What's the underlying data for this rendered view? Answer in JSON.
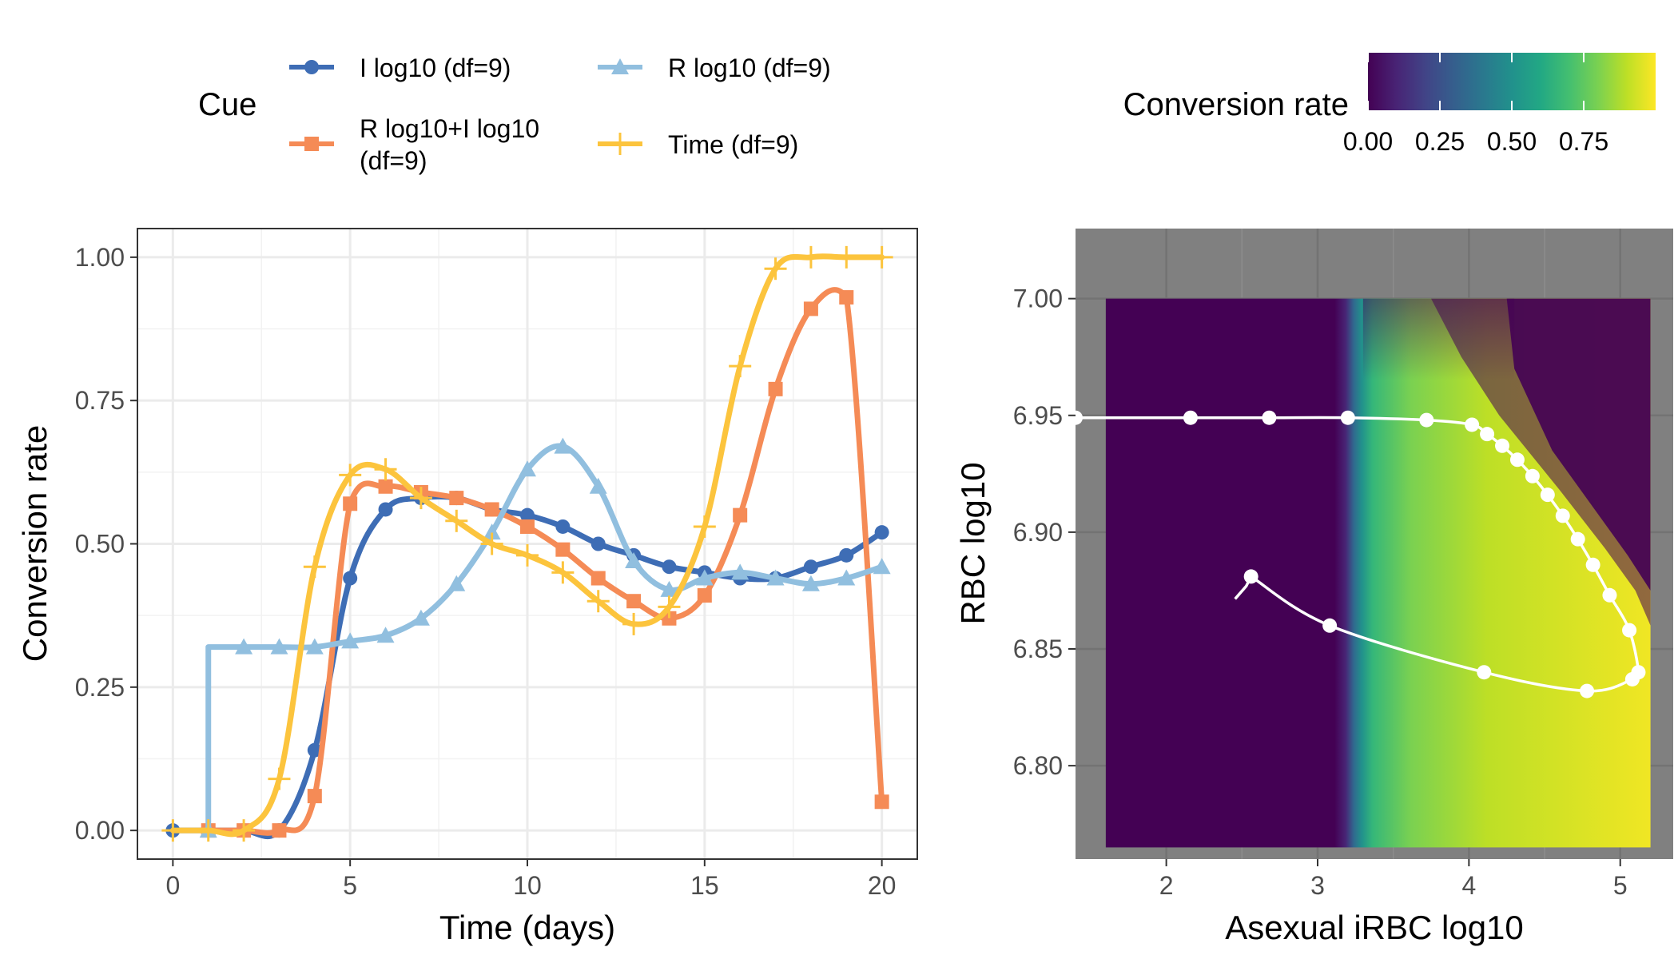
{
  "chart_data": [
    {
      "type": "line",
      "xlabel": "Time (days)",
      "ylabel": "Conversion rate",
      "xlim": [
        -1,
        21
      ],
      "ylim": [
        -0.05,
        1.05
      ],
      "x_ticks": [
        0,
        5,
        10,
        15,
        20
      ],
      "y_ticks": [
        0.0,
        0.25,
        0.5,
        0.75,
        1.0
      ],
      "x_tick_labels": [
        "0",
        "5",
        "10",
        "15",
        "20"
      ],
      "y_tick_labels": [
        "0.00",
        "0.25",
        "0.50",
        "0.75",
        "1.00"
      ],
      "grid": true,
      "legend_title": "Cue",
      "legend_position": "top",
      "series": [
        {
          "name": "I log10 (df=9)",
          "color": "#3e6db5",
          "marker": "circle",
          "x": [
            0,
            1,
            2,
            3,
            4,
            5,
            6,
            7,
            8,
            9,
            10,
            11,
            12,
            13,
            14,
            15,
            16,
            17,
            18,
            19,
            20
          ],
          "y": [
            0.0,
            0.0,
            0.0,
            0.0,
            0.14,
            0.44,
            0.56,
            0.58,
            0.58,
            0.56,
            0.55,
            0.53,
            0.5,
            0.48,
            0.46,
            0.45,
            0.44,
            0.44,
            0.46,
            0.48,
            0.52
          ]
        },
        {
          "name": "R log10+I log10\n(df=9)",
          "color": "#f58b56",
          "marker": "square",
          "x": [
            1,
            2,
            3,
            4,
            5,
            6,
            7,
            8,
            9,
            10,
            11,
            12,
            13,
            14,
            15,
            16,
            17,
            18,
            19,
            20
          ],
          "y": [
            0.0,
            0.0,
            0.0,
            0.06,
            0.57,
            0.6,
            0.59,
            0.58,
            0.56,
            0.53,
            0.49,
            0.44,
            0.4,
            0.37,
            0.41,
            0.55,
            0.77,
            0.91,
            0.93,
            0.05
          ]
        },
        {
          "name": "R log10 (df=9)",
          "color": "#91bfdf",
          "marker": "triangle",
          "x": [
            1,
            2,
            3,
            4,
            5,
            6,
            7,
            8,
            9,
            10,
            11,
            12,
            13,
            14,
            15,
            16,
            17,
            18,
            19,
            20
          ],
          "y": [
            0.0,
            0.32,
            0.32,
            0.32,
            0.33,
            0.34,
            0.37,
            0.43,
            0.52,
            0.63,
            0.67,
            0.6,
            0.47,
            0.42,
            0.44,
            0.45,
            0.44,
            0.43,
            0.44,
            0.46
          ]
        },
        {
          "name": "Time (df=9)",
          "color": "#fcc43d",
          "marker": "plus",
          "x": [
            0,
            1,
            2,
            3,
            4,
            5,
            6,
            7,
            8,
            9,
            10,
            11,
            12,
            13,
            14,
            15,
            16,
            17,
            18,
            19,
            20
          ],
          "y": [
            0.0,
            0.0,
            0.0,
            0.09,
            0.46,
            0.62,
            0.63,
            0.58,
            0.54,
            0.5,
            0.48,
            0.45,
            0.4,
            0.36,
            0.39,
            0.53,
            0.81,
            0.98,
            1.0,
            1.0,
            1.0
          ]
        }
      ]
    },
    {
      "type": "heatmap",
      "xlabel": "Asexual iRBC log10",
      "ylabel": "RBC log10",
      "x_ticks": [
        2,
        3,
        4,
        5
      ],
      "y_ticks": [
        6.8,
        6.85,
        6.9,
        6.95,
        7.0
      ],
      "x_tick_labels": [
        "2",
        "3",
        "4",
        "5"
      ],
      "y_tick_labels": [
        "6.80",
        "6.85",
        "6.90",
        "6.95",
        "7.00"
      ],
      "xlim": [
        1.4,
        5.35
      ],
      "ylim": [
        6.76,
        7.03
      ],
      "heatmap_extent": {
        "x": [
          1.6,
          5.2
        ],
        "y": [
          6.765,
          7.0
        ]
      },
      "colorbar_title": "Conversion rate",
      "colorbar_ticks": [
        0.0,
        0.25,
        0.5,
        0.75
      ],
      "colorbar_tick_labels": [
        "0.00",
        "0.25",
        "0.50",
        "0.75"
      ],
      "colorbar_range": [
        0,
        1
      ],
      "colormap": "viridis",
      "panel_background": "#808080",
      "trajectory": {
        "color": "#ffffff",
        "points": [
          [
            1.4,
            6.949
          ],
          [
            2.16,
            6.949
          ],
          [
            2.68,
            6.949
          ],
          [
            3.2,
            6.949
          ],
          [
            3.72,
            6.948
          ],
          [
            4.02,
            6.946
          ],
          [
            4.12,
            6.942
          ],
          [
            4.22,
            6.937
          ],
          [
            4.32,
            6.931
          ],
          [
            4.42,
            6.924
          ],
          [
            4.52,
            6.916
          ],
          [
            4.62,
            6.907
          ],
          [
            4.72,
            6.897
          ],
          [
            4.82,
            6.886
          ],
          [
            4.93,
            6.873
          ],
          [
            5.06,
            6.858
          ],
          [
            5.12,
            6.84
          ],
          [
            5.08,
            6.837
          ],
          [
            4.78,
            6.832
          ],
          [
            4.1,
            6.84
          ],
          [
            3.08,
            6.86
          ],
          [
            2.56,
            6.881
          ]
        ]
      }
    }
  ],
  "legend": {
    "title": "Cue",
    "items": [
      {
        "label": "I log10 (df=9)"
      },
      {
        "label_line1": "R log10+I log10",
        "label_line2": "(df=9)"
      },
      {
        "label": "R log10 (df=9)"
      },
      {
        "label": "Time (df=9)"
      }
    ]
  },
  "colorbar": {
    "title": "Conversion rate"
  }
}
